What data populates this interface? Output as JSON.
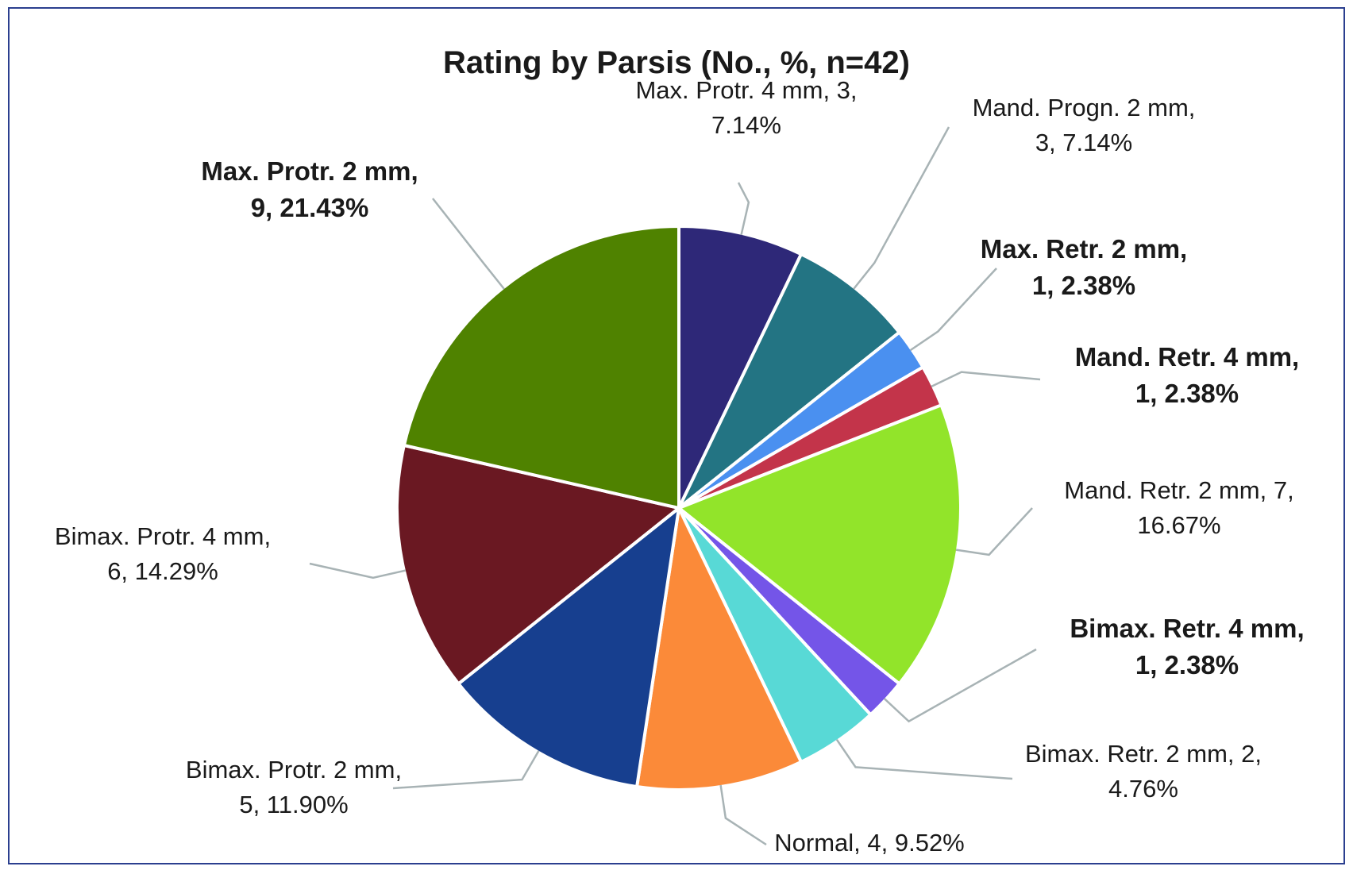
{
  "chart_data": {
    "type": "pie",
    "title": "Rating by Parsis (No., %, n=42)",
    "slices": [
      {
        "name": "Max. Protr. 4 mm",
        "count": 3,
        "percent": 7.14,
        "color": "#2e2878",
        "label_lines": [
          "Max. Protr. 4 mm, 3,",
          "7.14%"
        ],
        "label_color": "#1a1a1a",
        "highlight": false
      },
      {
        "name": "Mand. Progn. 2 mm",
        "count": 3,
        "percent": 7.14,
        "color": "#237483",
        "label_lines": [
          "Mand. Progn. 2 mm,",
          "3, 7.14%"
        ],
        "label_color": "#1a1a1a",
        "highlight": false
      },
      {
        "name": "Max. Retr. 2 mm",
        "count": 1,
        "percent": 2.38,
        "color": "#4a90f0",
        "label_lines": [
          "Max. Retr. 2 mm,",
          "1, 2.38%"
        ],
        "label_color": "#ff2a2a",
        "highlight": true
      },
      {
        "name": "Mand. Retr. 4 mm",
        "count": 1,
        "percent": 2.38,
        "color": "#c3344a",
        "label_lines": [
          "Mand. Retr. 4 mm,",
          "1, 2.38%"
        ],
        "label_color": "#ff2a2a",
        "highlight": true
      },
      {
        "name": "Mand. Retr. 2 mm",
        "count": 7,
        "percent": 16.67,
        "color": "#92e42a",
        "label_lines": [
          "Mand. Retr. 2 mm, 7,",
          "16.67%"
        ],
        "label_color": "#1a1a1a",
        "highlight": false
      },
      {
        "name": "Bimax. Retr. 4 mm",
        "count": 1,
        "percent": 2.38,
        "color": "#7455e8",
        "label_lines": [
          "Bimax. Retr. 4 mm,",
          "1, 2.38%"
        ],
        "label_color": "#ff2a2a",
        "highlight": true
      },
      {
        "name": "Bimax. Retr. 2 mm",
        "count": 2,
        "percent": 4.76,
        "color": "#58d9d6",
        "label_lines": [
          "Bimax. Retr. 2 mm, 2,",
          "4.76%"
        ],
        "label_color": "#1a1a1a",
        "highlight": false
      },
      {
        "name": "Normal",
        "count": 4,
        "percent": 9.52,
        "color": "#fb8a39",
        "label_lines": [
          "Normal, 4, 9.52%"
        ],
        "label_color": "#1a1a1a",
        "highlight": false
      },
      {
        "name": "Bimax. Protr. 2 mm",
        "count": 5,
        "percent": 11.9,
        "color": "#173f8f",
        "label_lines": [
          "Bimax. Protr. 2 mm,",
          "5, 11.90%"
        ],
        "label_color": "#1a1a1a",
        "highlight": false
      },
      {
        "name": "Bimax. Protr. 4 mm",
        "count": 6,
        "percent": 14.29,
        "color": "#6a1822",
        "label_lines": [
          "Bimax. Protr. 4 mm,",
          "6, 14.29%"
        ],
        "label_color": "#1a1a1a",
        "highlight": false
      },
      {
        "name": "Max. Protr. 2 mm",
        "count": 9,
        "percent": 21.43,
        "color": "#4f8200",
        "label_lines": [
          "Max. Protr. 2 mm,",
          "9, 21.43%"
        ],
        "label_color": "#33ee33",
        "highlight": true
      }
    ],
    "start": "12 o'clock",
    "direction": "clockwise",
    "legend": "none",
    "leader_line_color": "#a8b3b5"
  }
}
